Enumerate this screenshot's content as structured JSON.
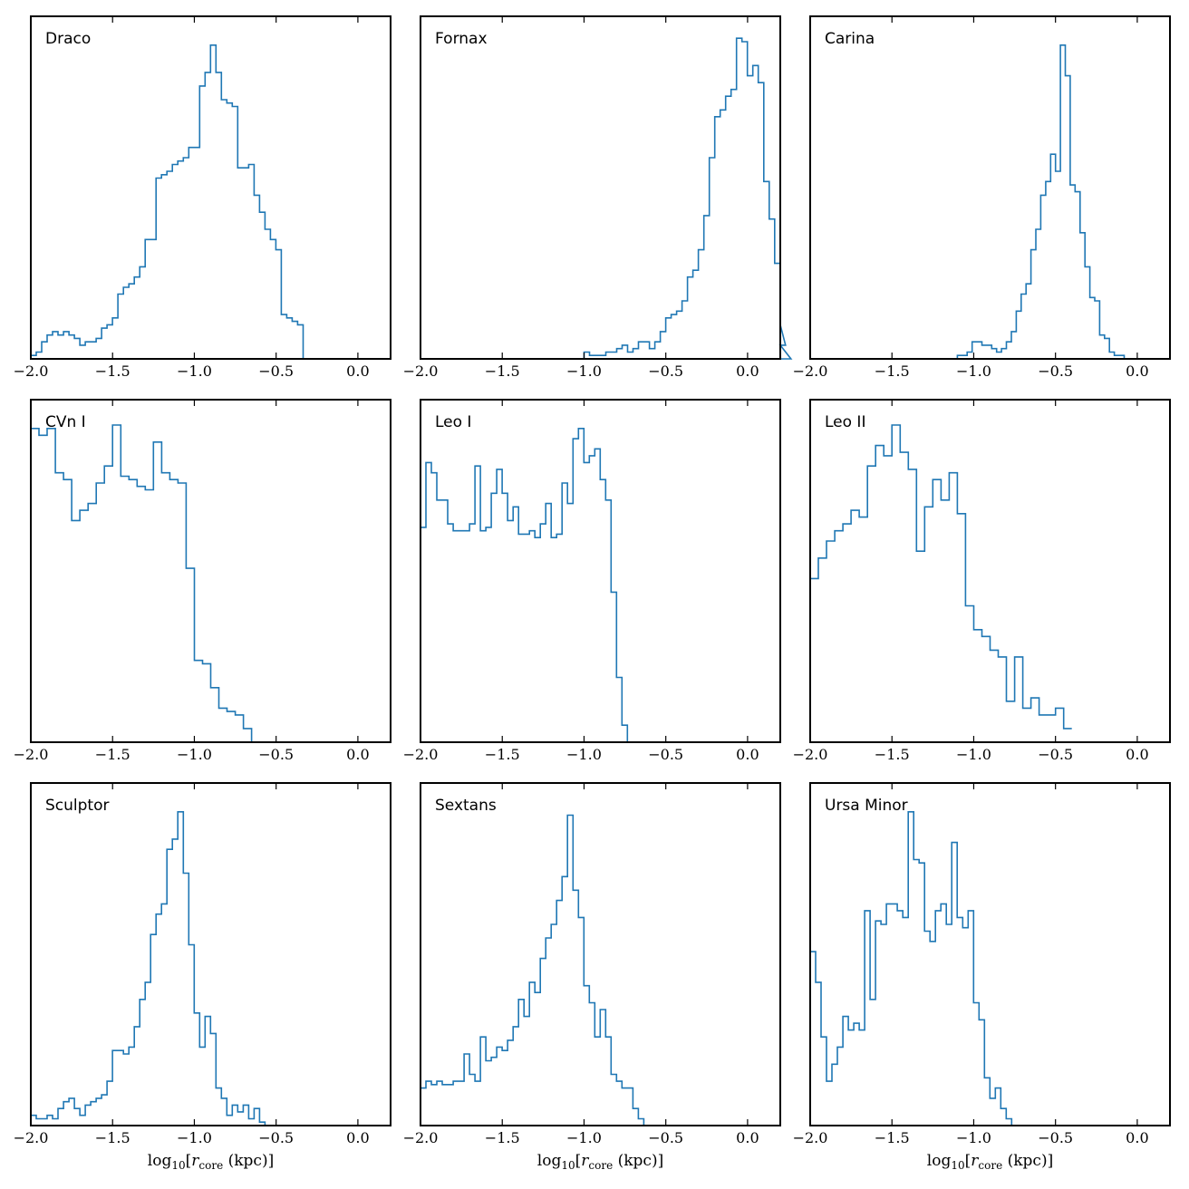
{
  "chart_data": [
    {
      "type": "bar",
      "title": "Draco",
      "xlabel": "",
      "xlim": [
        -2.0,
        0.2
      ],
      "xticks": [
        -2.0,
        -1.5,
        -1.0,
        -0.5,
        0.0
      ],
      "xtick_labels": [
        "−2.0",
        "−1.5",
        "−1.0",
        "−0.5",
        "0.0"
      ],
      "bin_start": -2.0,
      "bin_width": 0.0333,
      "counts": [
        0.01,
        0.02,
        0.05,
        0.07,
        0.08,
        0.07,
        0.08,
        0.07,
        0.06,
        0.04,
        0.05,
        0.05,
        0.06,
        0.09,
        0.1,
        0.12,
        0.19,
        0.21,
        0.22,
        0.24,
        0.27,
        0.35,
        0.35,
        0.53,
        0.54,
        0.55,
        0.57,
        0.58,
        0.59,
        0.62,
        0.62,
        0.8,
        0.84,
        0.92,
        0.84,
        0.76,
        0.75,
        0.74,
        0.56,
        0.56,
        0.57,
        0.48,
        0.43,
        0.38,
        0.35,
        0.32,
        0.13,
        0.12,
        0.11,
        0.1,
        0
      ]
    },
    {
      "type": "bar",
      "title": "Fornax",
      "xlabel": "",
      "xlim": [
        -2.0,
        0.2
      ],
      "xticks": [
        -2.0,
        -1.5,
        -1.0,
        -0.5,
        0.0
      ],
      "xtick_labels": [
        "−2.0",
        "−1.5",
        "−1.0",
        "−0.5",
        "0.0"
      ],
      "bin_start": -1.0,
      "bin_width": 0.0333,
      "counts": [
        0.02,
        0.01,
        0.01,
        0.01,
        0.02,
        0.02,
        0.03,
        0.04,
        0.02,
        0.03,
        0.05,
        0.05,
        0.03,
        0.05,
        0.08,
        0.12,
        0.13,
        0.14,
        0.17,
        0.24,
        0.26,
        0.32,
        0.42,
        0.59,
        0.71,
        0.73,
        0.77,
        0.79,
        0.94,
        0.93,
        0.83,
        0.86,
        0.81,
        0.52,
        0.41,
        0.28,
        0.1,
        0.04,
        0
      ]
    },
    {
      "type": "bar",
      "title": "Carina",
      "xlabel": "",
      "xlim": [
        -2.0,
        0.2
      ],
      "xticks": [
        -2.0,
        -1.5,
        -1.0,
        -0.5,
        0.0
      ],
      "xtick_labels": [
        "−2.0",
        "−1.5",
        "−1.0",
        "−0.5",
        "0.0"
      ],
      "bin_start": -1.1,
      "bin_width": 0.03,
      "counts": [
        0.01,
        0.01,
        0.02,
        0.05,
        0.05,
        0.04,
        0.04,
        0.03,
        0.02,
        0.03,
        0.05,
        0.08,
        0.14,
        0.19,
        0.22,
        0.32,
        0.38,
        0.48,
        0.52,
        0.6,
        0.55,
        0.92,
        0.83,
        0.51,
        0.49,
        0.37,
        0.27,
        0.18,
        0.17,
        0.07,
        0.06,
        0.02,
        0.01,
        0.01,
        0
      ]
    },
    {
      "type": "bar",
      "title": "CVn I",
      "xlabel": "",
      "xlim": [
        -2.0,
        0.2
      ],
      "xticks": [
        -2.0,
        -1.5,
        -1.0,
        -0.5,
        0.0
      ],
      "xtick_labels": [
        "−2.0",
        "−1.5",
        "−1.0",
        "−0.5",
        "0.0"
      ],
      "bin_start": -2.0,
      "bin_width": 0.05,
      "counts": [
        0.92,
        0.9,
        0.92,
        0.79,
        0.77,
        0.65,
        0.68,
        0.7,
        0.76,
        0.81,
        0.93,
        0.78,
        0.77,
        0.75,
        0.74,
        0.88,
        0.79,
        0.77,
        0.76,
        0.51,
        0.24,
        0.23,
        0.16,
        0.1,
        0.09,
        0.08,
        0.04,
        0
      ]
    },
    {
      "type": "bar",
      "title": "Leo I",
      "xlabel": "",
      "xlim": [
        -2.0,
        0.2
      ],
      "xticks": [
        -2.0,
        -1.5,
        -1.0,
        -0.5,
        0.0
      ],
      "xtick_labels": [
        "−2.0",
        "−1.5",
        "−1.0",
        "−0.5",
        "0.0"
      ],
      "bin_start": -2.0,
      "bin_width": 0.0333,
      "counts": [
        0.63,
        0.82,
        0.79,
        0.71,
        0.71,
        0.64,
        0.62,
        0.62,
        0.62,
        0.64,
        0.81,
        0.62,
        0.63,
        0.73,
        0.8,
        0.73,
        0.65,
        0.69,
        0.61,
        0.61,
        0.62,
        0.6,
        0.64,
        0.7,
        0.6,
        0.61,
        0.76,
        0.7,
        0.89,
        0.92,
        0.82,
        0.84,
        0.86,
        0.77,
        0.71,
        0.44,
        0.19,
        0.05,
        0
      ]
    },
    {
      "type": "bar",
      "title": "Leo II",
      "xlabel": "",
      "xlim": [
        -2.0,
        0.2
      ],
      "xticks": [
        -2.0,
        -1.5,
        -1.0,
        -0.5,
        0.0
      ],
      "xtick_labels": [
        "−2.0",
        "−1.5",
        "−1.0",
        "−0.5",
        "0.0"
      ],
      "bin_start": -2.0,
      "bin_width": 0.05,
      "counts": [
        0.48,
        0.54,
        0.59,
        0.62,
        0.64,
        0.68,
        0.66,
        0.81,
        0.87,
        0.84,
        0.93,
        0.85,
        0.8,
        0.56,
        0.69,
        0.77,
        0.71,
        0.79,
        0.67,
        0.4,
        0.33,
        0.31,
        0.27,
        0.25,
        0.12,
        0.25,
        0.1,
        0.13,
        0.08,
        0.08,
        0.1,
        0.04
      ]
    },
    {
      "type": "bar",
      "title": "Sculptor",
      "xlabel": "log10[r_core (kpc)]",
      "xlim": [
        -2.0,
        0.2
      ],
      "xticks": [
        -2.0,
        -1.5,
        -1.0,
        -0.5,
        0.0
      ],
      "xtick_labels": [
        "−2.0",
        "−1.5",
        "−1.0",
        "−0.5",
        "0.0"
      ],
      "bin_start": -2.0,
      "bin_width": 0.0333,
      "counts": [
        0.03,
        0.02,
        0.02,
        0.03,
        0.02,
        0.05,
        0.07,
        0.08,
        0.05,
        0.03,
        0.06,
        0.07,
        0.08,
        0.09,
        0.13,
        0.22,
        0.22,
        0.21,
        0.23,
        0.29,
        0.37,
        0.42,
        0.56,
        0.62,
        0.65,
        0.81,
        0.84,
        0.92,
        0.74,
        0.53,
        0.33,
        0.23,
        0.32,
        0.27,
        0.11,
        0.08,
        0.03,
        0.06,
        0.04,
        0.06,
        0.02,
        0.05,
        0.01,
        0
      ]
    },
    {
      "type": "bar",
      "title": "Sextans",
      "xlabel": "log10[r_core (kpc)]",
      "xlim": [
        -2.0,
        0.2
      ],
      "xticks": [
        -2.0,
        -1.5,
        -1.0,
        -0.5,
        0.0
      ],
      "xtick_labels": [
        "−2.0",
        "−1.5",
        "−1.0",
        "−0.5",
        "0.0"
      ],
      "bin_start": -2.0,
      "bin_width": 0.0333,
      "counts": [
        0.11,
        0.13,
        0.12,
        0.13,
        0.12,
        0.12,
        0.13,
        0.13,
        0.21,
        0.15,
        0.13,
        0.26,
        0.19,
        0.2,
        0.23,
        0.22,
        0.25,
        0.29,
        0.37,
        0.32,
        0.42,
        0.39,
        0.49,
        0.55,
        0.59,
        0.66,
        0.73,
        0.91,
        0.69,
        0.61,
        0.41,
        0.36,
        0.26,
        0.34,
        0.26,
        0.15,
        0.13,
        0.11,
        0.11,
        0.05,
        0.02,
        0
      ]
    },
    {
      "type": "bar",
      "title": "Ursa Minor",
      "xlabel": "log10[r_core (kpc)]",
      "xlim": [
        -2.0,
        0.2
      ],
      "xticks": [
        -2.0,
        -1.5,
        -1.0,
        -0.5,
        0.0
      ],
      "xtick_labels": [
        "−2.0",
        "−1.5",
        "−1.0",
        "−0.5",
        "0.0"
      ],
      "bin_start": -2.0,
      "bin_width": 0.0333,
      "counts": [
        0.51,
        0.42,
        0.26,
        0.13,
        0.18,
        0.23,
        0.32,
        0.28,
        0.3,
        0.28,
        0.63,
        0.37,
        0.6,
        0.59,
        0.65,
        0.65,
        0.63,
        0.61,
        0.92,
        0.78,
        0.77,
        0.57,
        0.54,
        0.63,
        0.65,
        0.59,
        0.83,
        0.61,
        0.58,
        0.63,
        0.36,
        0.31,
        0.14,
        0.08,
        0.11,
        0.05,
        0.02,
        0
      ]
    }
  ]
}
